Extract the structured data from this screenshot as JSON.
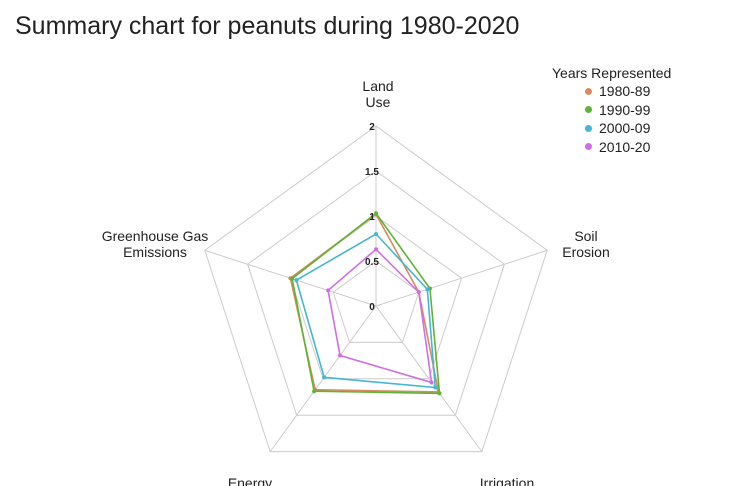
{
  "title": "Summary chart for peanuts during 1980-2020",
  "chart_data": {
    "type": "radar",
    "title": "Summary chart for peanuts during 1980-2020",
    "axes": [
      "Land Use",
      "Soil Erosion",
      "Irrigation",
      "Energy",
      "Greenhouse Gas Emissions"
    ],
    "axis_label_lines": [
      [
        "Land",
        "Use"
      ],
      [
        "Soil",
        "Erosion"
      ],
      [
        "Irrigation"
      ],
      [
        "Energy"
      ],
      [
        "Greenhouse Gas",
        "Emissions"
      ]
    ],
    "range": [
      0,
      2
    ],
    "grid_levels": [
      0.5,
      1,
      1.5,
      2
    ],
    "tick_labels": [
      "0",
      "0.5",
      "1",
      "1.5",
      "2"
    ],
    "legend": {
      "title": "Years Represented",
      "placement": "top-right"
    },
    "series": [
      {
        "name": "1980-89",
        "color": "#d98b5f",
        "values": [
          1.02,
          0.5,
          1.18,
          1.15,
          1.0
        ]
      },
      {
        "name": "1990-99",
        "color": "#5fb336",
        "values": [
          1.03,
          0.63,
          1.2,
          1.17,
          0.98
        ]
      },
      {
        "name": "2000-09",
        "color": "#45b6d3",
        "values": [
          0.8,
          0.6,
          1.12,
          0.98,
          0.93
        ]
      },
      {
        "name": "2010-20",
        "color": "#cf6ee6",
        "values": [
          0.63,
          0.5,
          1.05,
          0.68,
          0.56
        ]
      }
    ]
  }
}
